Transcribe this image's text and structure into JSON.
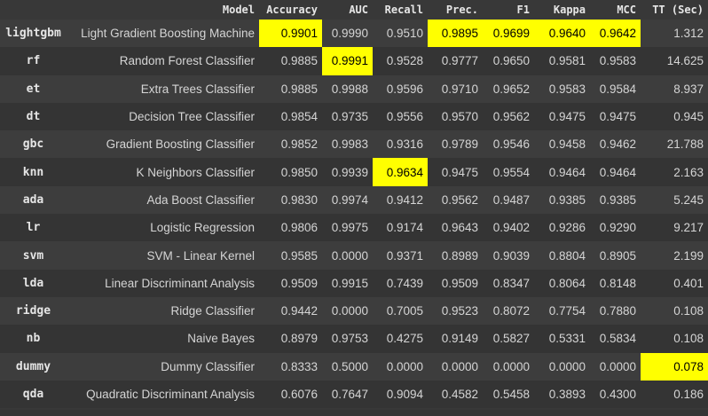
{
  "colors": {
    "background": "#383838",
    "row_odd": "#3d3d3d",
    "row_even": "#343434",
    "text": "#d5d5d5",
    "highlight": "#ffff00"
  },
  "table": {
    "headers": [
      "",
      "Model",
      "Accuracy",
      "AUC",
      "Recall",
      "Prec.",
      "F1",
      "Kappa",
      "MCC",
      "TT (Sec)"
    ],
    "rows": [
      {
        "id": "lightgbm",
        "cells": [
          "Light Gradient Boosting Machine",
          "0.9901",
          "0.9990",
          "0.9510",
          "0.9895",
          "0.9699",
          "0.9640",
          "0.9642",
          "1.312"
        ]
      },
      {
        "id": "rf",
        "cells": [
          "Random Forest Classifier",
          "0.9885",
          "0.9991",
          "0.9528",
          "0.9777",
          "0.9650",
          "0.9581",
          "0.9583",
          "14.625"
        ]
      },
      {
        "id": "et",
        "cells": [
          "Extra Trees Classifier",
          "0.9885",
          "0.9988",
          "0.9596",
          "0.9710",
          "0.9652",
          "0.9583",
          "0.9584",
          "8.937"
        ]
      },
      {
        "id": "dt",
        "cells": [
          "Decision Tree Classifier",
          "0.9854",
          "0.9735",
          "0.9556",
          "0.9570",
          "0.9562",
          "0.9475",
          "0.9475",
          "0.945"
        ]
      },
      {
        "id": "gbc",
        "cells": [
          "Gradient Boosting Classifier",
          "0.9852",
          "0.9983",
          "0.9316",
          "0.9789",
          "0.9546",
          "0.9458",
          "0.9462",
          "21.788"
        ]
      },
      {
        "id": "knn",
        "cells": [
          "K Neighbors Classifier",
          "0.9850",
          "0.9939",
          "0.9634",
          "0.9475",
          "0.9554",
          "0.9464",
          "0.9464",
          "2.163"
        ]
      },
      {
        "id": "ada",
        "cells": [
          "Ada Boost Classifier",
          "0.9830",
          "0.9974",
          "0.9412",
          "0.9562",
          "0.9487",
          "0.9385",
          "0.9385",
          "5.245"
        ]
      },
      {
        "id": "lr",
        "cells": [
          "Logistic Regression",
          "0.9806",
          "0.9975",
          "0.9174",
          "0.9643",
          "0.9402",
          "0.9286",
          "0.9290",
          "9.217"
        ]
      },
      {
        "id": "svm",
        "cells": [
          "SVM - Linear Kernel",
          "0.9585",
          "0.0000",
          "0.9371",
          "0.8989",
          "0.9039",
          "0.8804",
          "0.8905",
          "2.199"
        ]
      },
      {
        "id": "lda",
        "cells": [
          "Linear Discriminant Analysis",
          "0.9509",
          "0.9915",
          "0.7439",
          "0.9509",
          "0.8347",
          "0.8064",
          "0.8148",
          "0.401"
        ]
      },
      {
        "id": "ridge",
        "cells": [
          "Ridge Classifier",
          "0.9442",
          "0.0000",
          "0.7005",
          "0.9523",
          "0.8072",
          "0.7754",
          "0.7880",
          "0.108"
        ]
      },
      {
        "id": "nb",
        "cells": [
          "Naive Bayes",
          "0.8979",
          "0.9753",
          "0.4275",
          "0.9149",
          "0.5827",
          "0.5331",
          "0.5834",
          "0.108"
        ]
      },
      {
        "id": "dummy",
        "cells": [
          "Dummy Classifier",
          "0.8333",
          "0.5000",
          "0.0000",
          "0.0000",
          "0.0000",
          "0.0000",
          "0.0000",
          "0.078"
        ]
      },
      {
        "id": "qda",
        "cells": [
          "Quadratic Discriminant Analysis",
          "0.6076",
          "0.7647",
          "0.9094",
          "0.4582",
          "0.5458",
          "0.3893",
          "0.4300",
          "0.186"
        ]
      }
    ]
  }
}
